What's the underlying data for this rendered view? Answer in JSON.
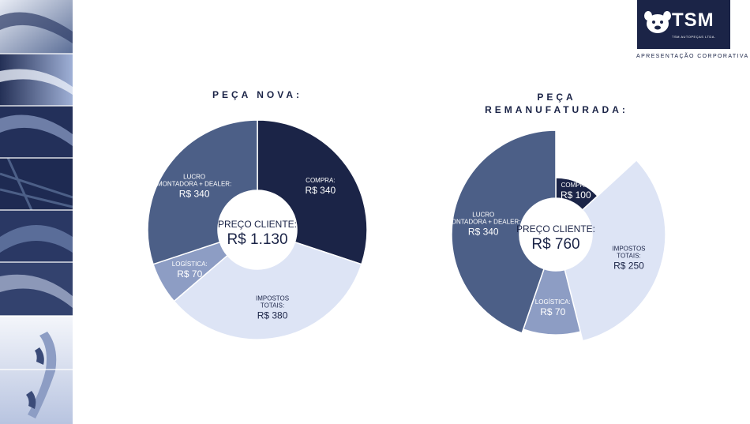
{
  "header": {
    "logo_text": "TSM",
    "logo_subtext": "TSM AUTOPEÇAS LTDA.",
    "tagline": "APRESENTAÇÃO CORPORATIVA"
  },
  "colors": {
    "navy": "#1b2447",
    "slate": "#4c5f87",
    "periwinkle": "#8d9dc4",
    "pale": "#dde4f5"
  },
  "chart_data": [
    {
      "type": "pie",
      "title": "PEÇA NOVA:",
      "center_label": "PREÇO CLIENTE:",
      "center_value": "R$ 1.130",
      "slices": [
        {
          "lines": [
            "COMPRA:"
          ],
          "value_label": "R$ 340",
          "value": 340,
          "color": "#1b2447",
          "text_color": "#ffffff"
        },
        {
          "lines": [
            "IMPOSTOS",
            "TOTAIS:"
          ],
          "value_label": "R$ 380",
          "value": 380,
          "color": "#dde4f5",
          "text_color": "#1b2447"
        },
        {
          "lines": [
            "LOGÍSTICA:"
          ],
          "value_label": "R$ 70",
          "value": 70,
          "color": "#8d9dc4",
          "text_color": "#ffffff"
        },
        {
          "lines": [
            "LUCRO",
            "MONTADORA + DEALER:"
          ],
          "value_label": "R$ 340",
          "value": 340,
          "color": "#4c5f87",
          "text_color": "#ffffff"
        }
      ]
    },
    {
      "type": "pie",
      "title": "PEÇA REMANUFATURADA:",
      "center_label": "PREÇO CLIENTE:",
      "center_value": "R$ 760",
      "slices": [
        {
          "lines": [
            "COMPRA:"
          ],
          "value_label": "R$ 100",
          "value": 100,
          "color": "#1b2447",
          "text_color": "#ffffff"
        },
        {
          "lines": [
            "IMPOSTOS",
            "TOTAIS:"
          ],
          "value_label": "R$ 250",
          "value": 250,
          "color": "#dde4f5",
          "text_color": "#1b2447"
        },
        {
          "lines": [
            "LOGÍSTICA:"
          ],
          "value_label": "R$ 70",
          "value": 70,
          "color": "#8d9dc4",
          "text_color": "#ffffff"
        },
        {
          "lines": [
            "LUCRO",
            "MONTADORA + DEALER:"
          ],
          "value_label": "R$ 340",
          "value": 340,
          "color": "#4c5f87",
          "text_color": "#ffffff"
        }
      ]
    }
  ]
}
